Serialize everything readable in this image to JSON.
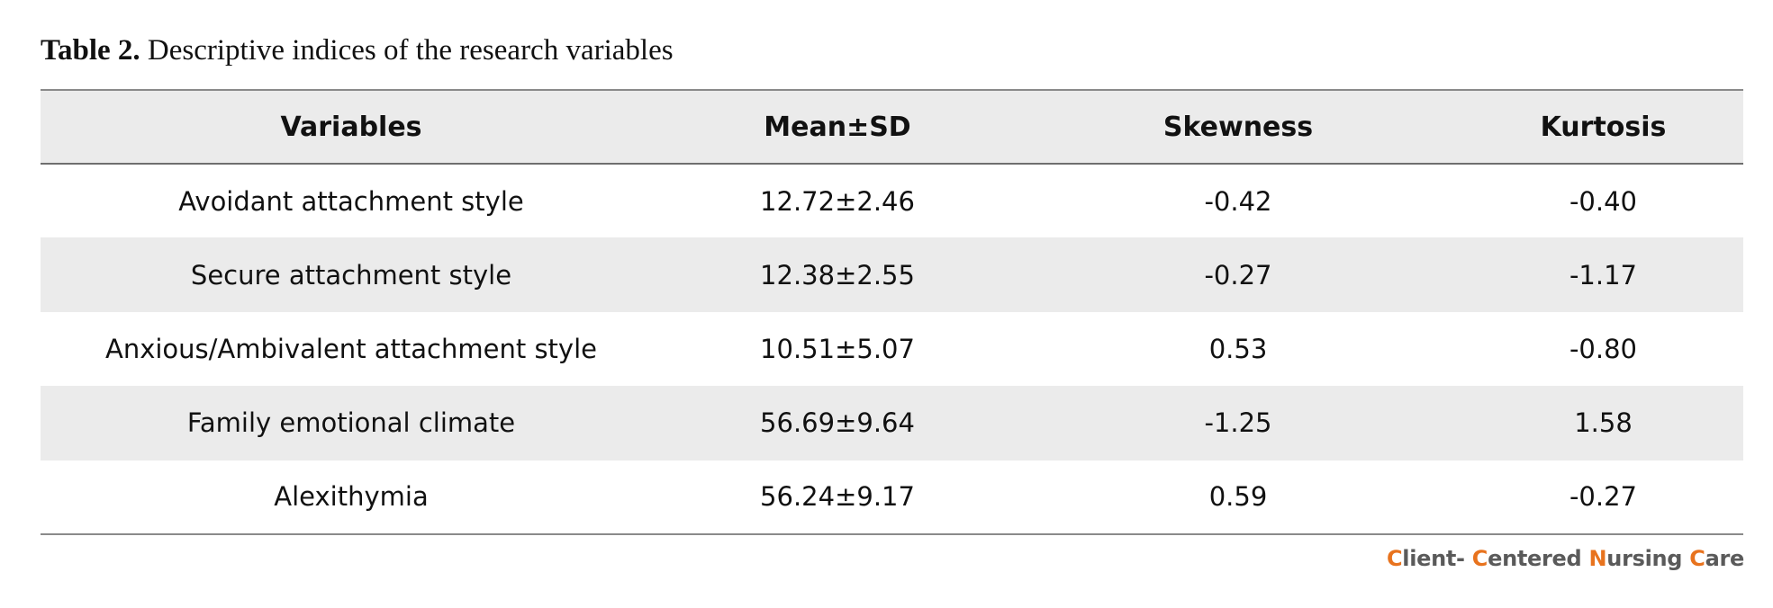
{
  "caption": {
    "label": "Table 2.",
    "text": " Descriptive indices of the research variables"
  },
  "table": {
    "headers": [
      "Variables",
      "Mean±SD",
      "Skewness",
      "Kurtosis"
    ],
    "rows": [
      [
        "Avoidant attachment style",
        "12.72±2.46",
        "-0.42",
        "-0.40"
      ],
      [
        "Secure attachment style",
        "12.38±2.55",
        "-0.27",
        "-1.17"
      ],
      [
        "Anxious/Ambivalent attachment style",
        "10.51±5.07",
        "0.53",
        "-0.80"
      ],
      [
        "Family emotional climate",
        "56.69±9.64",
        "-1.25",
        "1.58"
      ],
      [
        "Alexithymia",
        "56.24±9.17",
        "0.59",
        "-0.27"
      ]
    ]
  },
  "footer": {
    "journal": "Client- Centered Nursing Care",
    "parts": [
      {
        "text": "C",
        "accent": true
      },
      {
        "text": "lient- ",
        "accent": false
      },
      {
        "text": "C",
        "accent": true
      },
      {
        "text": "entered ",
        "accent": false
      },
      {
        "text": "N",
        "accent": true
      },
      {
        "text": "ursing ",
        "accent": false
      },
      {
        "text": "C",
        "accent": true
      },
      {
        "text": "are",
        "accent": false
      }
    ],
    "accent_color": "#e8731e",
    "text_color": "#5a5a5a"
  },
  "colors": {
    "row_shade": "#ebebeb",
    "rule": "#8a8a8a"
  }
}
